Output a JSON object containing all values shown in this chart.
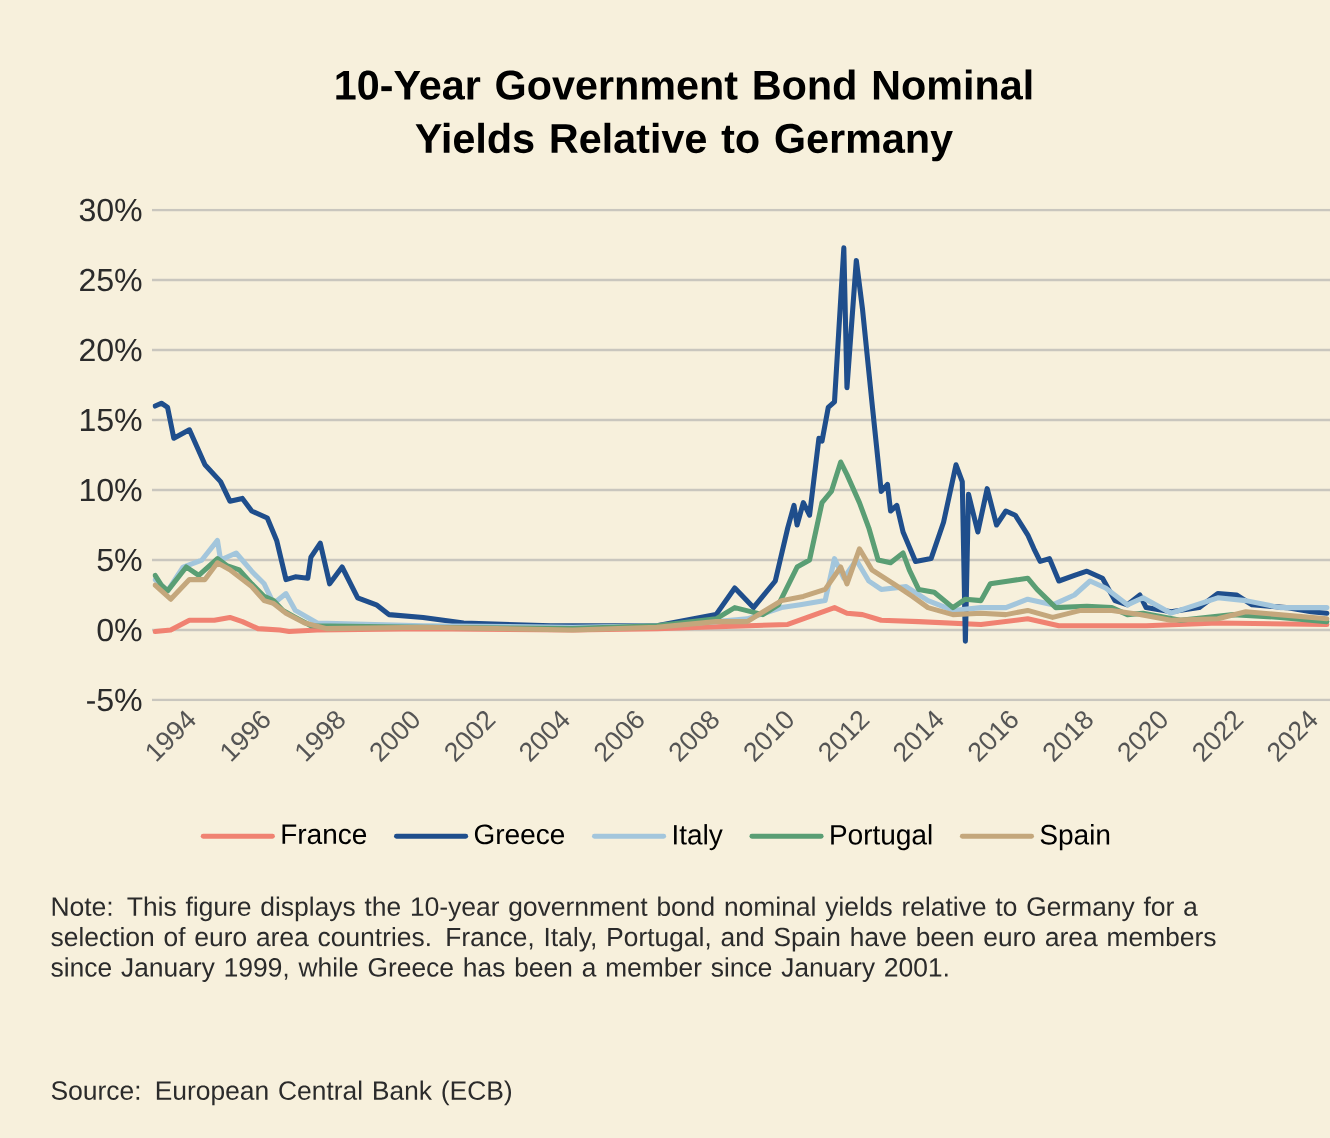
{
  "chart_data": {
    "type": "line",
    "title": "10-Year Government Bond Nominal Yields Relative to Germany",
    "xlim": [
      "1993-02",
      "2024-08"
    ],
    "xticks": [
      "1994",
      "1996",
      "1998",
      "2000",
      "2002",
      "2004",
      "2006",
      "2008",
      "2010",
      "2012",
      "2014",
      "2016",
      "2018",
      "2020",
      "2022",
      "2024"
    ],
    "ylim": [
      -5,
      30
    ],
    "yticks": [
      {
        "value": -5,
        "label": "-5%"
      },
      {
        "value": 0,
        "label": "0%"
      },
      {
        "value": 5,
        "label": "5%"
      },
      {
        "value": 10,
        "label": "10%"
      },
      {
        "value": 15,
        "label": "15%"
      },
      {
        "value": 20,
        "label": "20%"
      },
      {
        "value": 25,
        "label": "25%"
      },
      {
        "value": 30,
        "label": "30%"
      }
    ],
    "grid": "y",
    "legend": "bottom",
    "marker": "none",
    "line_style": "solid",
    "series": [
      {
        "name": "France",
        "color": "#f08272",
        "x": [
          "1993-03",
          "1993-08",
          "1994-02",
          "1994-10",
          "1995-03",
          "1995-07",
          "1995-12",
          "1996-07",
          "1996-10",
          "1997-07",
          "2000-05",
          "2004-05",
          "2006-08",
          "2010-02",
          "2011-05",
          "2011-09",
          "2012-02",
          "2012-08",
          "2013-08",
          "2015-04",
          "2016-07",
          "2017-05",
          "2019-09",
          "2021-08",
          "2024-07"
        ],
        "values": [
          -0.1,
          0.0,
          0.7,
          0.7,
          0.9,
          0.6,
          0.1,
          0.0,
          -0.1,
          0.0,
          0.1,
          0.0,
          0.1,
          0.4,
          1.6,
          1.2,
          1.1,
          0.7,
          0.6,
          0.4,
          0.8,
          0.3,
          0.3,
          0.5,
          0.4
        ]
      },
      {
        "name": "Greece",
        "color": "#1f4e8c",
        "x": [
          "1993-03",
          "1993-05",
          "1993-07",
          "1993-09",
          "1994-02",
          "1994-07",
          "1994-12",
          "1995-03",
          "1995-07",
          "1995-10",
          "1996-03",
          "1996-06",
          "1996-09",
          "1996-12",
          "1997-04",
          "1997-05",
          "1997-08",
          "1997-11",
          "1998-03",
          "1998-08",
          "1999-02",
          "1999-06",
          "2000-05",
          "2001-06",
          "2003-10",
          "2006-08",
          "2008-03",
          "2008-09",
          "2009-03",
          "2009-10",
          "2010-02",
          "2010-04",
          "2010-05",
          "2010-07",
          "2010-09",
          "2010-12",
          "2011-01",
          "2011-03",
          "2011-05",
          "2011-08",
          "2011-09",
          "2011-12",
          "2012-02",
          "2012-05",
          "2012-08",
          "2012-10",
          "2012-11",
          "2013-01",
          "2013-03",
          "2013-07",
          "2013-12",
          "2014-04",
          "2014-08",
          "2014-10",
          "2014-11",
          "2014-12",
          "2015-03",
          "2015-06",
          "2015-09",
          "2015-12",
          "2016-03",
          "2016-07",
          "2016-09",
          "2016-11",
          "2017-02",
          "2017-05",
          "2017-10",
          "2018-02",
          "2018-07",
          "2018-11",
          "2019-03",
          "2019-07",
          "2019-09",
          "2020-05",
          "2021-02",
          "2021-08",
          "2022-02",
          "2022-07",
          "2023-06",
          "2024-02",
          "2024-07"
        ],
        "values": [
          16.0,
          16.2,
          15.9,
          13.7,
          14.3,
          11.8,
          10.6,
          9.2,
          9.4,
          8.5,
          8.0,
          6.4,
          3.6,
          3.8,
          3.7,
          5.2,
          6.2,
          3.3,
          4.5,
          2.3,
          1.8,
          1.1,
          0.9,
          0.5,
          0.3,
          0.3,
          1.1,
          3.0,
          1.6,
          3.5,
          7.3,
          8.9,
          7.5,
          9.1,
          8.2,
          13.7,
          13.5,
          15.9,
          16.3,
          27.3,
          17.3,
          26.4,
          22.9,
          16.3,
          9.9,
          10.4,
          8.5,
          8.9,
          7.0,
          4.9,
          5.1,
          7.7,
          11.8,
          10.6,
          -0.8,
          9.7,
          7.0,
          10.1,
          7.5,
          8.5,
          8.2,
          6.8,
          5.8,
          4.9,
          5.1,
          3.5,
          3.9,
          4.2,
          3.7,
          2.1,
          1.8,
          2.5,
          1.6,
          1.3,
          1.6,
          2.6,
          2.5,
          1.8,
          1.6,
          1.3,
          1.2
        ]
      },
      {
        "name": "Italy",
        "color": "#a3c6dc",
        "x": [
          "1993-03",
          "1993-07",
          "1993-12",
          "1994-06",
          "1994-11",
          "1994-12",
          "1995-05",
          "1995-10",
          "1996-02",
          "1996-05",
          "1996-09",
          "1996-12",
          "1997-07",
          "2000-05",
          "2004-05",
          "2006-08",
          "2008-03",
          "2009-01",
          "2009-12",
          "2010-06",
          "2011-02",
          "2011-05",
          "2011-08",
          "2011-12",
          "2012-04",
          "2012-08",
          "2013-04",
          "2013-11",
          "2014-07",
          "2015-04",
          "2015-12",
          "2016-07",
          "2017-03",
          "2017-10",
          "2018-03",
          "2018-08",
          "2019-03",
          "2019-08",
          "2020-05",
          "2021-08",
          "2022-05",
          "2023-04",
          "2024-07"
        ],
        "values": [
          3.6,
          2.8,
          4.5,
          5.0,
          6.4,
          5.0,
          5.5,
          4.2,
          3.3,
          1.9,
          2.6,
          1.4,
          0.5,
          0.3,
          0.2,
          0.3,
          0.6,
          0.8,
          1.6,
          1.8,
          2.1,
          5.1,
          3.7,
          5.0,
          3.5,
          2.9,
          3.1,
          2.1,
          1.4,
          1.6,
          1.6,
          2.2,
          1.8,
          2.5,
          3.5,
          3.0,
          1.8,
          2.3,
          1.2,
          2.3,
          2.1,
          1.6,
          1.6
        ]
      },
      {
        "name": "Portugal",
        "color": "#5a9e74",
        "x": [
          "1993-03",
          "1993-05",
          "1993-07",
          "1994-01",
          "1994-05",
          "1994-11",
          "1995-02",
          "1995-06",
          "1995-10",
          "1996-02",
          "1996-05",
          "1996-08",
          "1996-12",
          "1997-05",
          "2000-05",
          "2004-05",
          "2006-08",
          "2008-03",
          "2008-09",
          "2009-06",
          "2009-11",
          "2010-05",
          "2010-09",
          "2011-01",
          "2011-04",
          "2011-07",
          "2011-09",
          "2012-01",
          "2012-04",
          "2012-07",
          "2012-11",
          "2013-03",
          "2013-05",
          "2013-08",
          "2014-01",
          "2014-07",
          "2014-11",
          "2015-04",
          "2015-07",
          "2016-01",
          "2016-07",
          "2016-10",
          "2017-04",
          "2018-02",
          "2018-10",
          "2019-03",
          "2019-08",
          "2020-08",
          "2022-01",
          "2023-04",
          "2024-07"
        ],
        "values": [
          3.9,
          3.2,
          2.8,
          4.5,
          3.9,
          5.1,
          4.6,
          4.3,
          3.3,
          2.4,
          2.1,
          1.4,
          0.9,
          0.3,
          0.2,
          0.1,
          0.3,
          0.8,
          1.6,
          1.1,
          1.8,
          4.5,
          5.0,
          9.1,
          9.9,
          12.0,
          11.1,
          9.1,
          7.3,
          5.0,
          4.8,
          5.5,
          4.3,
          2.9,
          2.7,
          1.6,
          2.2,
          2.1,
          3.3,
          3.5,
          3.7,
          2.9,
          1.6,
          1.7,
          1.6,
          1.1,
          1.2,
          0.7,
          1.1,
          0.9,
          0.6
        ]
      },
      {
        "name": "Spain",
        "color": "#c4a77c",
        "x": [
          "1993-03",
          "1993-08",
          "1994-02",
          "1994-07",
          "1994-11",
          "1995-03",
          "1995-10",
          "1996-02",
          "1996-05",
          "1996-09",
          "1997-03",
          "1997-10",
          "2000-05",
          "2004-05",
          "2006-08",
          "2008-03",
          "2009-01",
          "2009-12",
          "2010-07",
          "2011-02",
          "2011-07",
          "2011-09",
          "2012-01",
          "2012-05",
          "2012-12",
          "2013-06",
          "2013-11",
          "2014-07",
          "2015-04",
          "2015-12",
          "2016-07",
          "2017-03",
          "2017-12",
          "2018-10",
          "2019-07",
          "2020-05",
          "2021-08",
          "2022-05",
          "2024-07"
        ],
        "values": [
          3.2,
          2.2,
          3.6,
          3.6,
          4.8,
          4.3,
          3.1,
          2.1,
          1.9,
          1.2,
          0.5,
          0.1,
          0.2,
          0.0,
          0.2,
          0.6,
          0.6,
          2.1,
          2.4,
          2.9,
          4.5,
          3.3,
          5.8,
          4.3,
          3.3,
          2.4,
          1.6,
          1.1,
          1.2,
          1.1,
          1.4,
          0.9,
          1.4,
          1.4,
          1.1,
          0.7,
          0.8,
          1.3,
          0.8
        ]
      }
    ],
    "annotations": [
      "Note: This figure displays the 10-year government bond nominal yields relative to Germany for a selection of euro area countries. France, Italy, Portugal, and Spain have been euro area members since January 1999, while Greece has been a member since January 2001.",
      "Source: European Central Bank (ECB)"
    ]
  }
}
